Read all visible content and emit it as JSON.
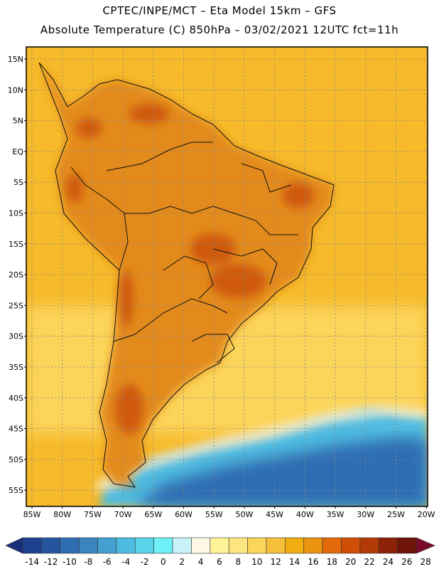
{
  "header": {
    "line1": "CPTEC/INPE/MCT –  Eta Model 15km – GFS",
    "line2": "Absolute Temperature (C) 850hPa – 03/02/2021 12UTC fct=11h"
  },
  "axes": {
    "lat_labels": [
      "15N",
      "10N",
      "5N",
      "EQ",
      "5S",
      "10S",
      "15S",
      "20S",
      "25S",
      "30S",
      "35S",
      "40S",
      "45S",
      "50S",
      "55S"
    ],
    "lon_labels": [
      "85W",
      "80W",
      "75W",
      "70W",
      "65W",
      "60W",
      "55W",
      "50W",
      "45W",
      "40W",
      "35W",
      "30W",
      "25W",
      "20W"
    ]
  },
  "colorbar": {
    "labels": [
      "-14",
      "-12",
      "-10",
      "-8",
      "-6",
      "-4",
      "-2",
      "0",
      "2",
      "4",
      "6",
      "8",
      "10",
      "12",
      "14",
      "16",
      "18",
      "20",
      "22",
      "24",
      "26",
      "28"
    ],
    "colors": [
      "#1f3f8f",
      "#25559f",
      "#2f6db2",
      "#3a84c0",
      "#43a0d0",
      "#4fbbe0",
      "#58d3ea",
      "#6ff0f6",
      "#c8f4f9",
      "#fff8e4",
      "#fff299",
      "#fde680",
      "#fbd45a",
      "#f6c03a",
      "#f1ae12",
      "#eb9410",
      "#e36a0a",
      "#cf4e08",
      "#b23a06",
      "#8b2106",
      "#6e1408"
    ],
    "low_end_color": "#1a2f7a",
    "high_end_color": "#7a0a2a"
  },
  "map": {
    "land_color": "#e38a1c",
    "ocean_warm_color": "#f6ba2a",
    "ocean_mid_color": "#fbd45a",
    "hot_spot_color": "#cf5a10",
    "cold_color": "#4fbbe0",
    "coldest_color": "#2f6db2",
    "border_color": "#111111"
  }
}
